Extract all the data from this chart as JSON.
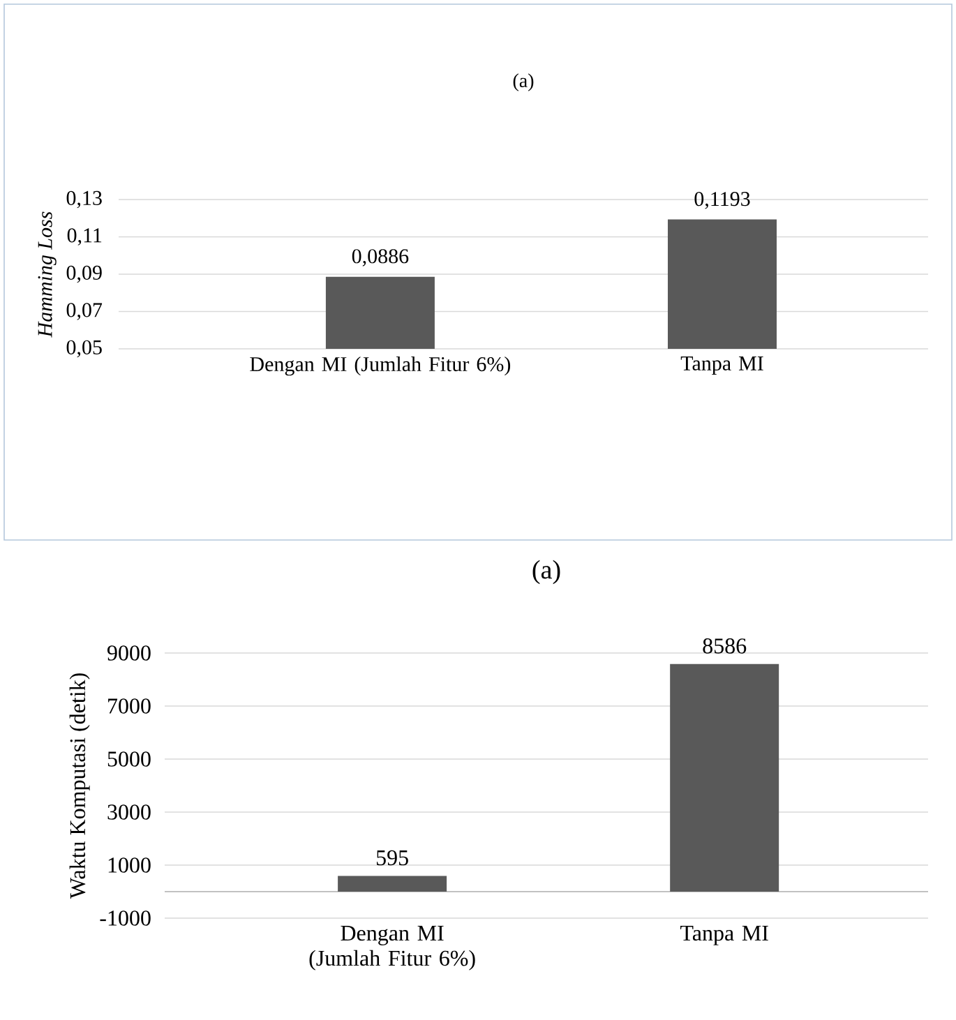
{
  "chart_data": [
    {
      "type": "bar",
      "title": "(a)",
      "ylabel": "Hamming Loss",
      "categories": [
        "Dengan MI (Jumlah Fitur 6%)",
        "Tanpa MI"
      ],
      "values": [
        0.0886,
        0.1193
      ],
      "value_labels": [
        "0,0886",
        "0,1193"
      ],
      "color": "#595959",
      "ylim": [
        0.05,
        0.13
      ],
      "yticks": [
        {
          "value": 0.05,
          "label": "0,05"
        },
        {
          "value": 0.07,
          "label": "0,07"
        },
        {
          "value": 0.09,
          "label": "0,09"
        },
        {
          "value": 0.11,
          "label": "0,11"
        },
        {
          "value": 0.13,
          "label": "0,13"
        }
      ],
      "grid": "y"
    },
    {
      "type": "bar",
      "title": "(a)",
      "ylabel": "Waktu Komputasi (detik)",
      "categories": [
        "Dengan MI (Jumlah Fitur 6%)",
        "Tanpa MI"
      ],
      "values": [
        595,
        8586
      ],
      "data_labels": true,
      "color": "#595959",
      "ylim": [
        -1000,
        9000
      ],
      "yticks": [
        -1000,
        1000,
        3000,
        5000,
        7000,
        9000
      ],
      "grid": "y"
    }
  ]
}
